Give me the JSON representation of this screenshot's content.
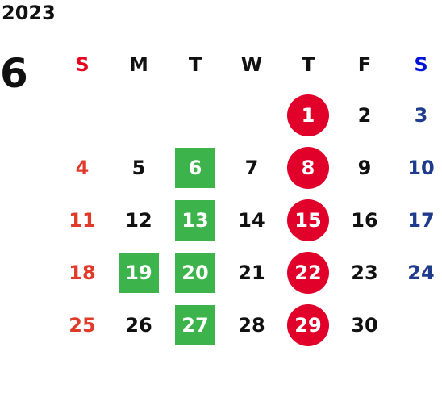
{
  "year": "2023",
  "month": "6",
  "weekdays": [
    {
      "label": "S",
      "color": "#e8001f"
    },
    {
      "label": "M",
      "color": "#111111"
    },
    {
      "label": "T",
      "color": "#111111"
    },
    {
      "label": "W",
      "color": "#111111"
    },
    {
      "label": "T",
      "color": "#111111"
    },
    {
      "label": "F",
      "color": "#111111"
    },
    {
      "label": "S",
      "color": "#0014d6"
    }
  ],
  "colors": {
    "sunday_text": "#e03a2a",
    "saturday_text": "#1f3c8c",
    "green_highlight": "#3cb44b",
    "red_highlight": "#e0002a"
  },
  "weeks": [
    [
      "",
      "",
      "",
      "",
      "1",
      "2",
      "3"
    ],
    [
      "4",
      "5",
      "6",
      "7",
      "8",
      "9",
      "10"
    ],
    [
      "11",
      "12",
      "13",
      "14",
      "15",
      "16",
      "17"
    ],
    [
      "18",
      "19",
      "20",
      "21",
      "22",
      "23",
      "24"
    ],
    [
      "25",
      "26",
      "27",
      "28",
      "29",
      "30",
      ""
    ]
  ],
  "highlights": {
    "green": [
      "6",
      "13",
      "19",
      "20",
      "27"
    ],
    "red": [
      "1",
      "8",
      "15",
      "22",
      "29"
    ]
  }
}
